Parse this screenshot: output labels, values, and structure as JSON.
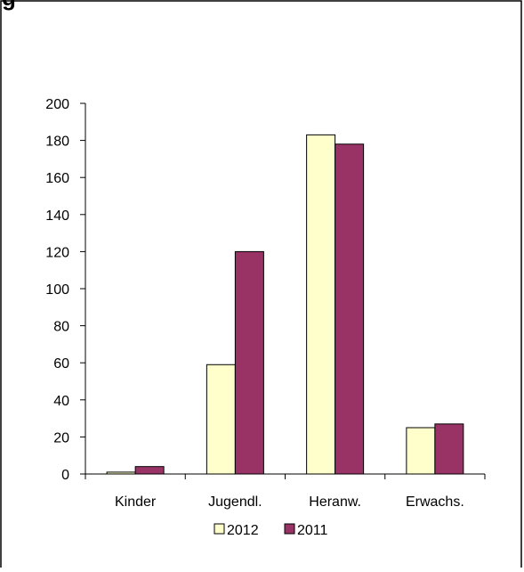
{
  "header": {
    "title_fragment": "g"
  },
  "chart_data": {
    "type": "bar",
    "categories": [
      "Kinder",
      "Jugendl.",
      "Heranw.",
      "Erwachs."
    ],
    "series": [
      {
        "name": "2012",
        "values": [
          1,
          59,
          183,
          25
        ],
        "color": "#FFFFCC"
      },
      {
        "name": "2011",
        "values": [
          4,
          120,
          178,
          27
        ],
        "color": "#993366"
      }
    ],
    "ylim": [
      0,
      200
    ],
    "yticks": [
      0,
      20,
      40,
      60,
      80,
      100,
      120,
      140,
      160,
      180,
      200
    ],
    "xlabel": "",
    "ylabel": "",
    "title": "",
    "grid": false,
    "legend_position": "bottom"
  }
}
